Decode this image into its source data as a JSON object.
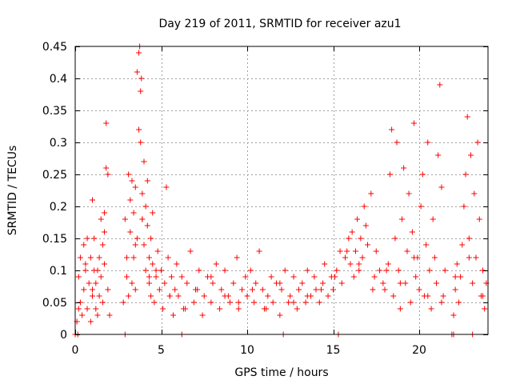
{
  "chart_data": {
    "type": "scatter",
    "title": "Day 219 of 2011, SRMTID for receiver azu1",
    "xlabel": "GPS time / hours",
    "ylabel": "SRMTID / TECUs",
    "xlim": [
      0,
      24
    ],
    "ylim": [
      0,
      0.45
    ],
    "xticks": [
      0,
      5,
      10,
      15,
      20
    ],
    "xtick_labels": [
      "0",
      "5",
      "10",
      "15",
      "20"
    ],
    "yticks": [
      0,
      0.05,
      0.1,
      0.15,
      0.2,
      0.25,
      0.3,
      0.35,
      0.4,
      0.45
    ],
    "ytick_labels": [
      "0",
      "0.05",
      "0.1",
      "0.15",
      "0.2",
      "0.25",
      "0.3",
      "0.35",
      "0.4",
      "0.45"
    ],
    "grid": true,
    "marker": "+",
    "color": "#ff0000",
    "series": [
      {
        "name": "SRMTID",
        "x": [
          0.1,
          0.2,
          0.3,
          0.3,
          0.4,
          0.5,
          0.5,
          0.6,
          0.7,
          0.7,
          0.8,
          0.9,
          0.9,
          1.0,
          1.0,
          1.1,
          1.1,
          1.2,
          1.2,
          1.3,
          1.4,
          1.4,
          1.5,
          1.5,
          1.6,
          1.6,
          1.7,
          1.7,
          1.8,
          1.8,
          1.9,
          1.9,
          2.0,
          2.8,
          2.9,
          3.0,
          3.0,
          3.1,
          3.2,
          3.2,
          3.3,
          3.3,
          3.4,
          3.4,
          3.5,
          3.5,
          3.6,
          3.6,
          3.7,
          3.7,
          3.75,
          3.8,
          3.8,
          3.85,
          3.9,
          3.9,
          4.0,
          4.0,
          4.1,
          4.1,
          4.2,
          4.2,
          4.3,
          4.3,
          4.4,
          4.4,
          4.5,
          4.5,
          4.6,
          4.7,
          4.8,
          4.9,
          5.0,
          5.1,
          5.2,
          5.3,
          5.4,
          5.5,
          5.6,
          5.7,
          5.8,
          5.9,
          6.0,
          6.2,
          6.4,
          6.5,
          6.7,
          6.9,
          7.0,
          7.2,
          7.4,
          7.5,
          7.7,
          7.9,
          8.0,
          8.2,
          8.4,
          8.5,
          8.7,
          8.9,
          9.0,
          9.2,
          9.4,
          9.5,
          9.7,
          9.9,
          10.0,
          10.2,
          10.4,
          10.5,
          10.7,
          10.9,
          11.0,
          11.2,
          11.4,
          11.5,
          11.7,
          11.9,
          12.0,
          12.2,
          12.4,
          12.5,
          12.7,
          12.9,
          13.0,
          13.2,
          13.4,
          13.5,
          13.7,
          13.9,
          14.0,
          14.2,
          14.4,
          14.5,
          14.7,
          14.9,
          15.0,
          15.2,
          15.4,
          15.5,
          15.7,
          15.9,
          16.0,
          16.1,
          16.2,
          16.3,
          16.4,
          16.5,
          16.6,
          16.7,
          16.8,
          16.9,
          17.0,
          17.2,
          17.4,
          17.5,
          17.7,
          17.9,
          18.0,
          18.2,
          18.3,
          18.4,
          18.5,
          18.6,
          18.7,
          18.8,
          18.9,
          19.0,
          19.1,
          19.2,
          19.3,
          19.4,
          19.5,
          19.6,
          19.7,
          19.8,
          19.9,
          20.0,
          20.1,
          20.2,
          20.3,
          20.4,
          20.5,
          20.6,
          20.7,
          20.8,
          20.9,
          21.0,
          21.1,
          21.2,
          21.3,
          21.4,
          21.5,
          22.0,
          22.1,
          22.2,
          22.3,
          22.4,
          22.5,
          22.6,
          22.7,
          22.8,
          22.9,
          23.0,
          23.1,
          23.2,
          23.3,
          23.4,
          23.5,
          23.6,
          23.7,
          23.8,
          23.9,
          0.2,
          0.6,
          1.0,
          1.3,
          1.7,
          3.1,
          3.5,
          3.9,
          4.3,
          4.7,
          5.5,
          6.3,
          7.1,
          7.9,
          8.7,
          9.5,
          10.3,
          11.1,
          11.9,
          12.7,
          13.5,
          14.3,
          15.1,
          15.8,
          16.5,
          17.3,
          18.1,
          18.9,
          19.7,
          20.5,
          21.3,
          22.1,
          22.9,
          23.7,
          0.0,
          0.15,
          2.9,
          6.2,
          12.1,
          15.3,
          21.9,
          22.0,
          23.1
        ],
        "y": [
          0.02,
          0.09,
          0.05,
          0.12,
          0.03,
          0.07,
          0.14,
          0.1,
          0.04,
          0.15,
          0.08,
          0.12,
          0.02,
          0.21,
          0.06,
          0.1,
          0.15,
          0.04,
          0.08,
          0.03,
          0.12,
          0.06,
          0.09,
          0.18,
          0.05,
          0.14,
          0.11,
          0.19,
          0.33,
          0.26,
          0.25,
          0.07,
          0.03,
          0.05,
          0.18,
          0.12,
          0.09,
          0.25,
          0.16,
          0.21,
          0.08,
          0.24,
          0.12,
          0.19,
          0.07,
          0.23,
          0.15,
          0.41,
          0.44,
          0.32,
          0.45,
          0.38,
          0.3,
          0.4,
          0.22,
          0.18,
          0.27,
          0.14,
          0.2,
          0.1,
          0.17,
          0.24,
          0.12,
          0.08,
          0.15,
          0.06,
          0.11,
          0.19,
          0.05,
          0.09,
          0.13,
          0.07,
          0.1,
          0.04,
          0.08,
          0.23,
          0.12,
          0.06,
          0.09,
          0.03,
          0.07,
          0.11,
          0.06,
          0.09,
          0.04,
          0.08,
          0.13,
          0.05,
          0.07,
          0.1,
          0.03,
          0.06,
          0.09,
          0.05,
          0.08,
          0.11,
          0.04,
          0.07,
          0.1,
          0.06,
          0.05,
          0.08,
          0.12,
          0.04,
          0.07,
          0.09,
          0.06,
          0.1,
          0.05,
          0.08,
          0.13,
          0.07,
          0.04,
          0.06,
          0.09,
          0.05,
          0.08,
          0.03,
          0.07,
          0.1,
          0.05,
          0.06,
          0.09,
          0.04,
          0.07,
          0.08,
          0.05,
          0.1,
          0.06,
          0.09,
          0.07,
          0.05,
          0.08,
          0.11,
          0.06,
          0.09,
          0.07,
          0.1,
          0.13,
          0.08,
          0.12,
          0.15,
          0.11,
          0.16,
          0.09,
          0.13,
          0.18,
          0.1,
          0.15,
          0.12,
          0.2,
          0.17,
          0.14,
          0.22,
          0.09,
          0.13,
          0.1,
          0.08,
          0.07,
          0.11,
          0.25,
          0.32,
          0.06,
          0.15,
          0.3,
          0.1,
          0.04,
          0.18,
          0.26,
          0.08,
          0.13,
          0.22,
          0.05,
          0.16,
          0.33,
          0.09,
          0.12,
          0.07,
          0.2,
          0.25,
          0.06,
          0.14,
          0.3,
          0.1,
          0.04,
          0.18,
          0.12,
          0.08,
          0.28,
          0.39,
          0.23,
          0.06,
          0.1,
          0.03,
          0.07,
          0.11,
          0.05,
          0.09,
          0.14,
          0.2,
          0.25,
          0.34,
          0.15,
          0.28,
          0.08,
          0.22,
          0.12,
          0.3,
          0.18,
          0.06,
          0.1,
          0.04,
          0.08,
          0.04,
          0.11,
          0.07,
          0.1,
          0.16,
          0.06,
          0.14,
          0.18,
          0.09,
          0.1,
          0.06,
          0.04,
          0.07,
          0.09,
          0.06,
          0.05,
          0.07,
          0.04,
          0.08,
          0.05,
          0.06,
          0.07,
          0.09,
          0.13,
          0.11,
          0.07,
          0.1,
          0.08,
          0.12,
          0.06,
          0.05,
          0.09,
          0.12,
          0.06,
          0.0,
          0.0,
          0.0,
          0.0,
          0.0,
          0.0,
          0.0,
          0.0,
          0.0
        ]
      }
    ]
  }
}
